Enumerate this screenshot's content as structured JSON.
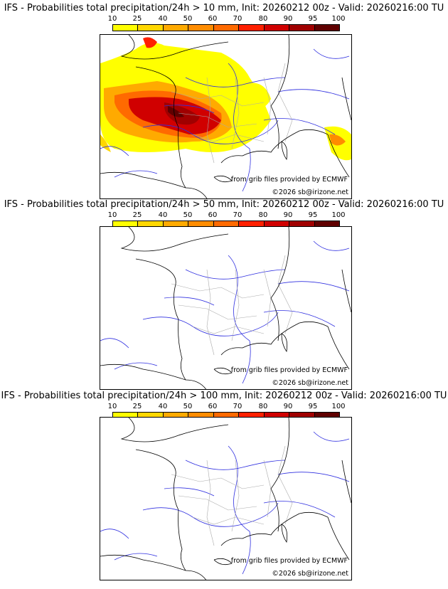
{
  "colorbar": {
    "ticks": [
      "10",
      "25",
      "40",
      "50",
      "60",
      "70",
      "80",
      "90",
      "95",
      "100"
    ],
    "colors": [
      "#ffff00",
      "#ffd700",
      "#ffaa00",
      "#ff8c00",
      "#ff6a00",
      "#ff2000",
      "#d00000",
      "#a00000",
      "#600000"
    ]
  },
  "panels": [
    {
      "title": "IFS - Probabilities total precipitation/24h > 10 mm, Init: 20260212 00z - Valid: 20260216:00 TU",
      "credit_source": "from grib files provided by ECMWF",
      "credit_copyright": "©2026 sb@irizone.net"
    },
    {
      "title": "IFS - Probabilities total precipitation/24h > 50 mm, Init: 20260212 00z - Valid: 20260216:00 TU",
      "credit_source": "from grib files provided by ECMWF",
      "credit_copyright": "©2026 sb@irizone.net"
    },
    {
      "title": "IFS - Probabilities total precipitation/24h > 100 mm, Init: 20260212 00z - Valid: 20260216:00 TU",
      "credit_source": "from grib files provided by ECMWF",
      "credit_copyright": "©2026 sb@irizone.net"
    }
  ]
}
